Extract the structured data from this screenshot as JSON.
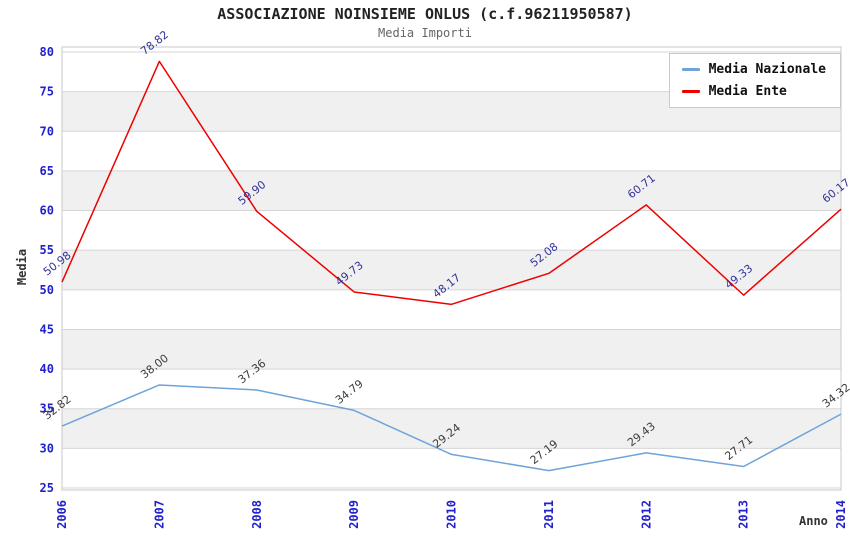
{
  "header": {
    "title": "ASSOCIAZIONE NOINSIEME ONLUS (c.f.96211950587)",
    "subtitle": "Media Importi"
  },
  "axes": {
    "y_title": "Media",
    "x_title": "Anno"
  },
  "legend": {
    "position": "top-right",
    "items": [
      {
        "label": "Media Nazionale",
        "color": "#6fa3d9"
      },
      {
        "label": "Media Ente",
        "color": "#ee0000"
      }
    ]
  },
  "chart_data": {
    "type": "line",
    "title": "ASSOCIAZIONE NOINSIEME ONLUS (c.f.96211950587)",
    "subtitle": "Media Importi",
    "xlabel": "Anno",
    "ylabel": "Media",
    "categories": [
      "2006",
      "2007",
      "2008",
      "2009",
      "2010",
      "2011",
      "2012",
      "2013",
      "2014"
    ],
    "series": [
      {
        "name": "Media Nazionale",
        "color": "#6fa3d9",
        "label_color": "#3c3c3c",
        "values": [
          32.82,
          38.0,
          37.36,
          34.79,
          29.24,
          27.19,
          29.43,
          27.71,
          34.32
        ]
      },
      {
        "name": "Media Ente",
        "color": "#ee0000",
        "label_color": "#333399",
        "values": [
          50.98,
          78.82,
          59.9,
          49.73,
          48.17,
          52.08,
          60.71,
          49.33,
          60.17
        ]
      }
    ],
    "ylim": [
      25,
      80
    ],
    "y_ticks": [
      25,
      30,
      35,
      40,
      45,
      50,
      55,
      60,
      65,
      70,
      75,
      80
    ],
    "grid": true,
    "legend_position": "top-right",
    "styles": {
      "tick_color": "#2222cc",
      "band_color": "#f0f0f0",
      "grid_color": "#d6d6d6",
      "border_color": "#c9c9c9"
    }
  }
}
